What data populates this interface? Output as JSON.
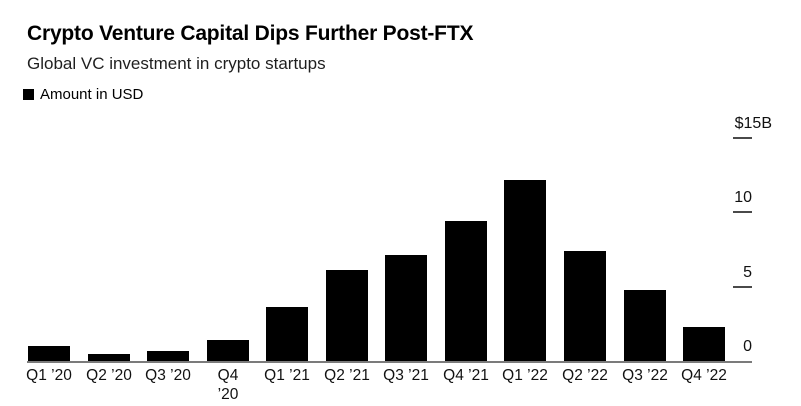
{
  "header": {
    "title": "Crypto Venture Capital Dips Further Post-FTX",
    "subtitle": "Global VC investment in crypto startups"
  },
  "legend": {
    "label": "Amount in USD",
    "marker_color": "#000000"
  },
  "chart_data": {
    "type": "bar",
    "title": "Crypto Venture Capital Dips Further Post-FTX",
    "subtitle": "Global VC investment in crypto startups",
    "series_name": "Amount in USD",
    "unit": "USD billions",
    "categories": [
      "Q1 ’20",
      "Q2 ’20",
      "Q3 ’20",
      "Q4\n’20",
      "Q1 ’21",
      "Q2 ’21",
      "Q3 ’21",
      "Q4 ’21",
      "Q1 ’22",
      "Q2 ’22",
      "Q3 ’22",
      "Q4 ’22"
    ],
    "values": [
      1.0,
      0.5,
      0.7,
      1.4,
      3.6,
      6.1,
      7.1,
      9.4,
      12.2,
      7.4,
      4.8,
      2.3
    ],
    "ylim": [
      0,
      15
    ],
    "y_axis": {
      "side": "right",
      "labels": [
        {
          "text": "$15B",
          "value": 15
        },
        {
          "text": "10",
          "value": 10
        },
        {
          "text": "5",
          "value": 5
        },
        {
          "text": "0",
          "value": 0
        }
      ]
    },
    "grid": false,
    "legend_position": "top-left",
    "bar_color": "#000000",
    "axis_line_color": "#7b7b7b",
    "tick_color": "#4a4a4a"
  }
}
